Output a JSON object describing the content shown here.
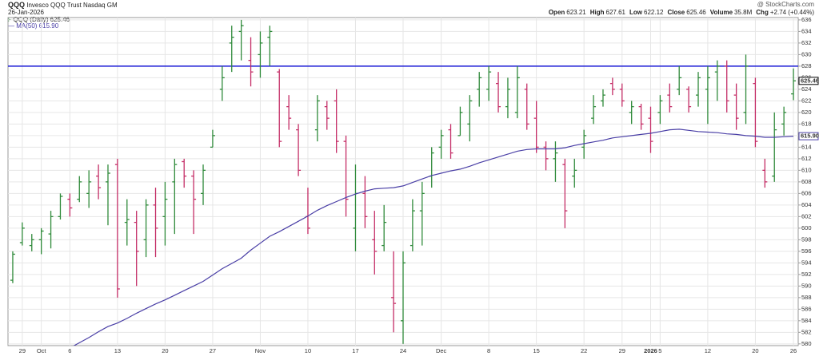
{
  "header": {
    "symbol": "QQQ",
    "name": "Invesco QQQ Trust Nasdaq GM",
    "source": "@ StockCharts.com",
    "date": "26-Jan-2026",
    "stats": [
      {
        "label": "Open",
        "value": "623.21"
      },
      {
        "label": "High",
        "value": "627.61"
      },
      {
        "label": "Low",
        "value": "622.12"
      },
      {
        "label": "Close",
        "value": "625.46"
      },
      {
        "label": "Volume",
        "value": "35.8M"
      },
      {
        "label": "Chg",
        "value": "+2.74 (+0.44%)"
      }
    ]
  },
  "chart_data": {
    "type": "ohlc",
    "categories": [
      null,
      "29",
      null,
      "Oct",
      null,
      null,
      "6",
      null,
      null,
      null,
      null,
      "13",
      null,
      null,
      null,
      null,
      "20",
      null,
      null,
      null,
      null,
      "27",
      null,
      null,
      null,
      null,
      "Nov",
      null,
      null,
      null,
      null,
      "10",
      null,
      null,
      null,
      null,
      "17",
      null,
      null,
      null,
      null,
      "24",
      null,
      null,
      null,
      "Dec",
      null,
      null,
      null,
      null,
      "8",
      null,
      null,
      null,
      null,
      "15",
      null,
      null,
      null,
      null,
      "22",
      null,
      null,
      null,
      "29",
      null,
      null,
      "2026",
      "5",
      null,
      null,
      null,
      null,
      "12",
      null,
      null,
      null,
      null,
      "20",
      null,
      null,
      null,
      "26"
    ],
    "series": [
      {
        "name": "QQQ (Daily) 625.46",
        "up_color": "#2f8a3a",
        "down_color": "#c42d66",
        "open": [
          591,
          597.5,
          597,
          598,
          599,
          602,
          605,
          605,
          606,
          609,
          608,
          611,
          601,
          601,
          598,
          604,
          602,
          608,
          611.5,
          609,
          606,
          614,
          624,
          632,
          634,
          629,
          630,
          633,
          627,
          621,
          617,
          602,
          617,
          621,
          622,
          615,
          600,
          606,
          598,
          597,
          588,
          584,
          597,
          603,
          609,
          614,
          617,
          616,
          618,
          624,
          624,
          625,
          621,
          620,
          624,
          619,
          614,
          612,
          611,
          609,
          614,
          619,
          622,
          625,
          624,
          620,
          621,
          619,
          620,
          623,
          624,
          624,
          623,
          624,
          627,
          628,
          623,
          620,
          625,
          610,
          609,
          618,
          623.21
        ],
        "high": [
          596,
          601,
          599,
          600,
          603,
          606,
          606,
          609,
          610,
          611,
          611,
          612,
          605,
          603,
          605,
          607,
          608,
          612,
          612,
          610,
          611,
          617,
          628,
          635,
          636,
          633,
          634,
          635,
          627.5,
          623,
          618,
          607,
          623,
          622,
          624,
          616,
          611,
          609,
          603,
          604,
          596,
          596,
          605,
          608,
          614,
          617,
          618,
          621,
          623,
          627,
          628,
          627,
          626,
          628,
          625,
          622,
          615,
          615,
          612,
          612,
          617,
          623,
          624,
          626,
          625,
          622,
          621.5,
          621,
          623,
          625,
          628,
          624.5,
          627,
          628,
          629,
          629,
          625,
          630,
          626,
          612,
          620,
          621,
          627.61
        ],
        "low": [
          590.5,
          597,
          596,
          595.5,
          596.5,
          601.5,
          602,
          604.5,
          603.5,
          605,
          600.5,
          588,
          597,
          590,
          595,
          595,
          597,
          599,
          607,
          599,
          604,
          614,
          622,
          627,
          629,
          624.5,
          626,
          628,
          614,
          617,
          609,
          599,
          615,
          617,
          613,
          602,
          596,
          600,
          592,
          596,
          582,
          580,
          596,
          597,
          607,
          612,
          612,
          616,
          615,
          621,
          622,
          620,
          619,
          619,
          617,
          613,
          610,
          608,
          600,
          607,
          612,
          618,
          621,
          623,
          621,
          618,
          617,
          613,
          618,
          620,
          623,
          620,
          621,
          618,
          622,
          620,
          617,
          618,
          614,
          607,
          608,
          616,
          622.12
        ],
        "close": [
          595.5,
          600,
          598,
          599.5,
          602,
          605.5,
          603.5,
          608,
          608,
          607,
          609.5,
          589.5,
          601.5,
          596,
          604,
          600,
          605,
          611,
          609,
          605,
          610,
          616,
          626,
          633,
          635,
          627,
          632,
          634,
          615,
          619,
          610,
          600,
          622,
          619,
          615,
          605,
          606,
          602,
          596,
          601,
          587,
          594,
          603,
          606,
          613,
          616,
          613,
          620,
          622,
          626,
          627,
          621,
          624,
          626,
          618,
          614,
          612,
          613,
          603,
          610,
          616,
          621,
          623,
          624,
          622,
          621,
          618,
          615,
          622,
          621,
          626,
          621,
          626,
          626,
          628,
          622,
          619,
          628,
          615,
          608,
          617,
          620,
          625.46
        ]
      },
      {
        "name": "MA(50) 615.90",
        "type": "line",
        "color": "#4a3fa6",
        "values": [
          null,
          null,
          null,
          null,
          null,
          null,
          579.3,
          580.2,
          581.1,
          582.1,
          583,
          583.6,
          584.4,
          585.3,
          586.1,
          586.9,
          587.6,
          588.4,
          589.2,
          590,
          590.8,
          591.9,
          593,
          593.9,
          594.8,
          596.2,
          597.4,
          598.6,
          599.4,
          600.3,
          601.2,
          602.1,
          603.1,
          603.9,
          604.6,
          605.3,
          605.9,
          606.4,
          606.8,
          606.9,
          607,
          607.3,
          607.9,
          608.5,
          609.1,
          609.5,
          609.9,
          610.2,
          610.7,
          611.3,
          611.8,
          612.3,
          612.8,
          613.3,
          613.6,
          613.7,
          613.7,
          613.7,
          613.9,
          614.3,
          614.6,
          614.9,
          615.2,
          615.6,
          615.8,
          616,
          616.2,
          616.4,
          616.7,
          617,
          617.1,
          616.9,
          616.7,
          616.6,
          616.5,
          616.3,
          616.2,
          616,
          615.9,
          615.7,
          615.7,
          615.8,
          615.9
        ]
      }
    ],
    "reference_line": {
      "value": 628,
      "color": "#1c1cd6"
    },
    "price_tags": [
      {
        "value": 625.46,
        "label": "625.46",
        "color": "#000000"
      },
      {
        "value": 615.9,
        "label": "615.90",
        "color": "#4a3fa6"
      }
    ],
    "ylim": [
      579.7,
      636.4
    ],
    "yticks": [
      580,
      582,
      584,
      586,
      588,
      590,
      592,
      594,
      596,
      598,
      600,
      602,
      604,
      606,
      608,
      610,
      612,
      614,
      616,
      618,
      620,
      622,
      624,
      626,
      628,
      630,
      632,
      634,
      636
    ],
    "grid": true
  }
}
